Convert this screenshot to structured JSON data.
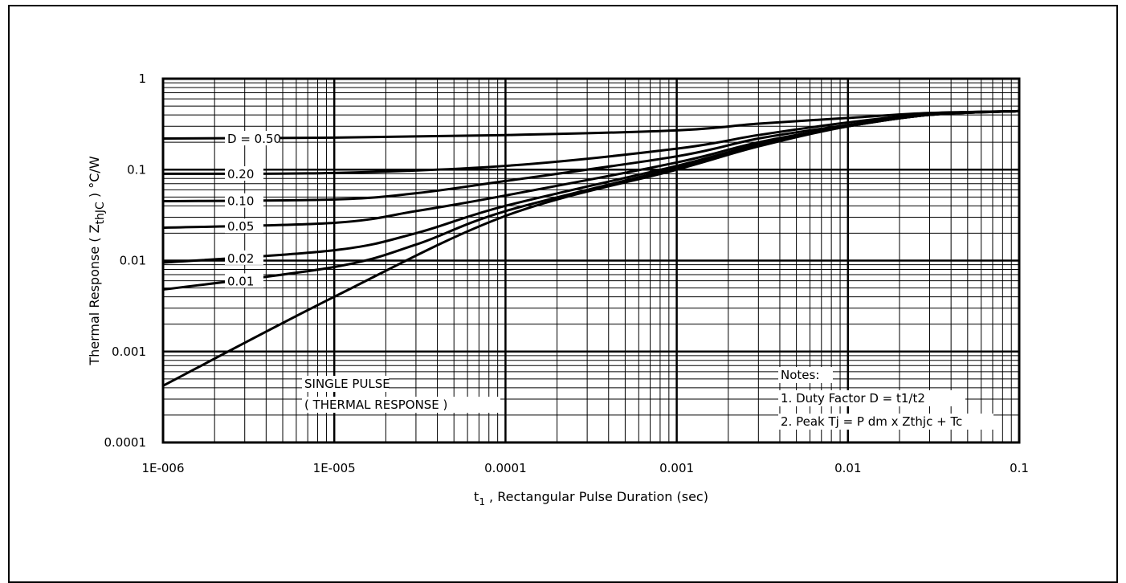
{
  "chart_data": {
    "type": "line",
    "x_scale": "log",
    "y_scale": "log",
    "xlim": [
      1e-06,
      0.1
    ],
    "ylim": [
      0.0001,
      1
    ],
    "x_ticks": [
      "1E-006",
      "1E-005",
      "0.0001",
      "0.001",
      "0.01",
      "0.1"
    ],
    "y_ticks": [
      "1",
      "0.1",
      "0.01",
      "0.001",
      "0.0001"
    ],
    "xlabel_main": "t",
    "xlabel_sub": "1",
    "xlabel_rest": " , Rectangular Pulse Duration (sec)",
    "ylabel_main": "Thermal Response ( Z",
    "ylabel_sub": "thJC",
    "ylabel_rest": " ) °C/W",
    "grid": true,
    "series": [
      {
        "name": "D = 0.50",
        "x": [
          1e-06,
          1e-05,
          0.0001,
          0.001,
          0.003,
          0.01,
          0.03,
          0.1
        ],
        "y": [
          0.22,
          0.225,
          0.24,
          0.27,
          0.32,
          0.37,
          0.42,
          0.44
        ]
      },
      {
        "name": "0.20",
        "x": [
          1e-06,
          1e-05,
          0.0001,
          0.001,
          0.003,
          0.01,
          0.03,
          0.1
        ],
        "y": [
          0.09,
          0.092,
          0.11,
          0.17,
          0.24,
          0.33,
          0.41,
          0.44
        ]
      },
      {
        "name": "0.10",
        "x": [
          1e-06,
          1e-05,
          3e-05,
          0.0001,
          0.001,
          0.003,
          0.01,
          0.03,
          0.1
        ],
        "y": [
          0.045,
          0.047,
          0.055,
          0.075,
          0.14,
          0.22,
          0.31,
          0.41,
          0.44
        ]
      },
      {
        "name": "0.05",
        "x": [
          1e-06,
          1e-05,
          3e-05,
          0.0001,
          0.001,
          0.003,
          0.01,
          0.03,
          0.1
        ],
        "y": [
          0.023,
          0.026,
          0.035,
          0.052,
          0.12,
          0.2,
          0.3,
          0.4,
          0.44
        ]
      },
      {
        "name": "0.02",
        "x": [
          1e-06,
          1e-05,
          3e-05,
          0.0001,
          0.001,
          0.003,
          0.01,
          0.03,
          0.1
        ],
        "y": [
          0.0095,
          0.013,
          0.02,
          0.04,
          0.11,
          0.19,
          0.3,
          0.4,
          0.44
        ]
      },
      {
        "name": "0.01",
        "x": [
          1e-06,
          1e-05,
          3e-05,
          0.0001,
          0.001,
          0.003,
          0.01,
          0.03,
          0.1
        ],
        "y": [
          0.0048,
          0.0085,
          0.015,
          0.035,
          0.105,
          0.19,
          0.3,
          0.4,
          0.44
        ]
      },
      {
        "name": "SINGLE PULSE",
        "x": [
          1e-06,
          1e-05,
          0.0001,
          0.001,
          0.003,
          0.01,
          0.03,
          0.1
        ],
        "y": [
          0.00042,
          0.004,
          0.031,
          0.1,
          0.18,
          0.3,
          0.4,
          0.44
        ]
      }
    ],
    "annotations": {
      "single_pulse": [
        "SINGLE PULSE",
        "( THERMAL RESPONSE )"
      ],
      "notes": [
        "Notes:",
        "1. Duty Factor D = t1/t2",
        "2. Peak Tj = P dm x Zthjc + Tc"
      ]
    }
  }
}
